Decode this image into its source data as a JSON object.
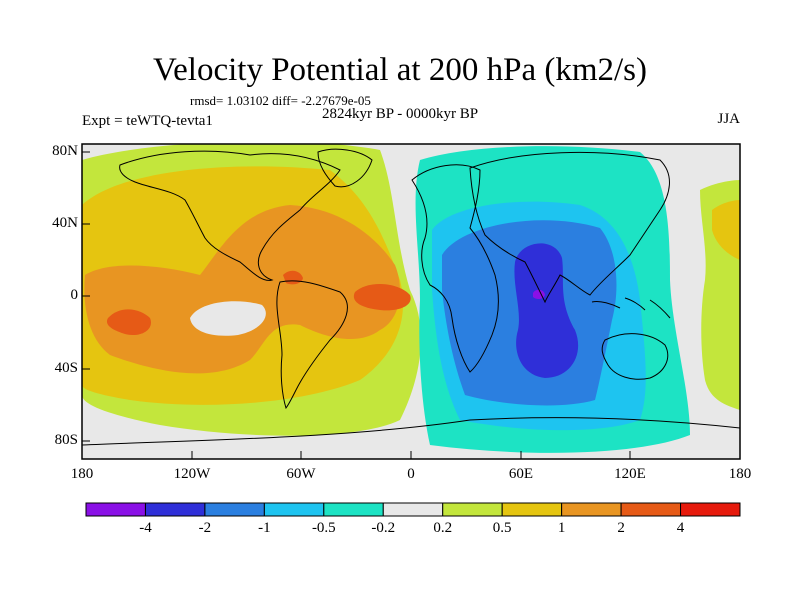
{
  "title": "Velocity Potential at 200 hPa (km2/s)",
  "stats": "rmsd= 1.03102  diff= -2.27679e-05",
  "period": "2824kyr BP - 0000kyr BP",
  "experiment": "Expt = teWTQ-tevta1",
  "season": "JJA",
  "lat_labels": [
    "80N",
    "40N",
    "0",
    "40S",
    "80S"
  ],
  "lon_labels": [
    "180",
    "120W",
    "60W",
    "0",
    "60E",
    "120E",
    "180"
  ],
  "colorbar": {
    "colors": [
      "#8a10e6",
      "#2f2fd8",
      "#2b7fe0",
      "#1ec4f0",
      "#1de3c4",
      "#e8e8e8",
      "#c3e63c",
      "#e5c510",
      "#e89522",
      "#e65a16",
      "#e61a0c"
    ],
    "labels": [
      "-4",
      "-2",
      "-1",
      "-0.5",
      "-0.2",
      "0.2",
      "0.5",
      "1",
      "2",
      "4"
    ]
  }
}
